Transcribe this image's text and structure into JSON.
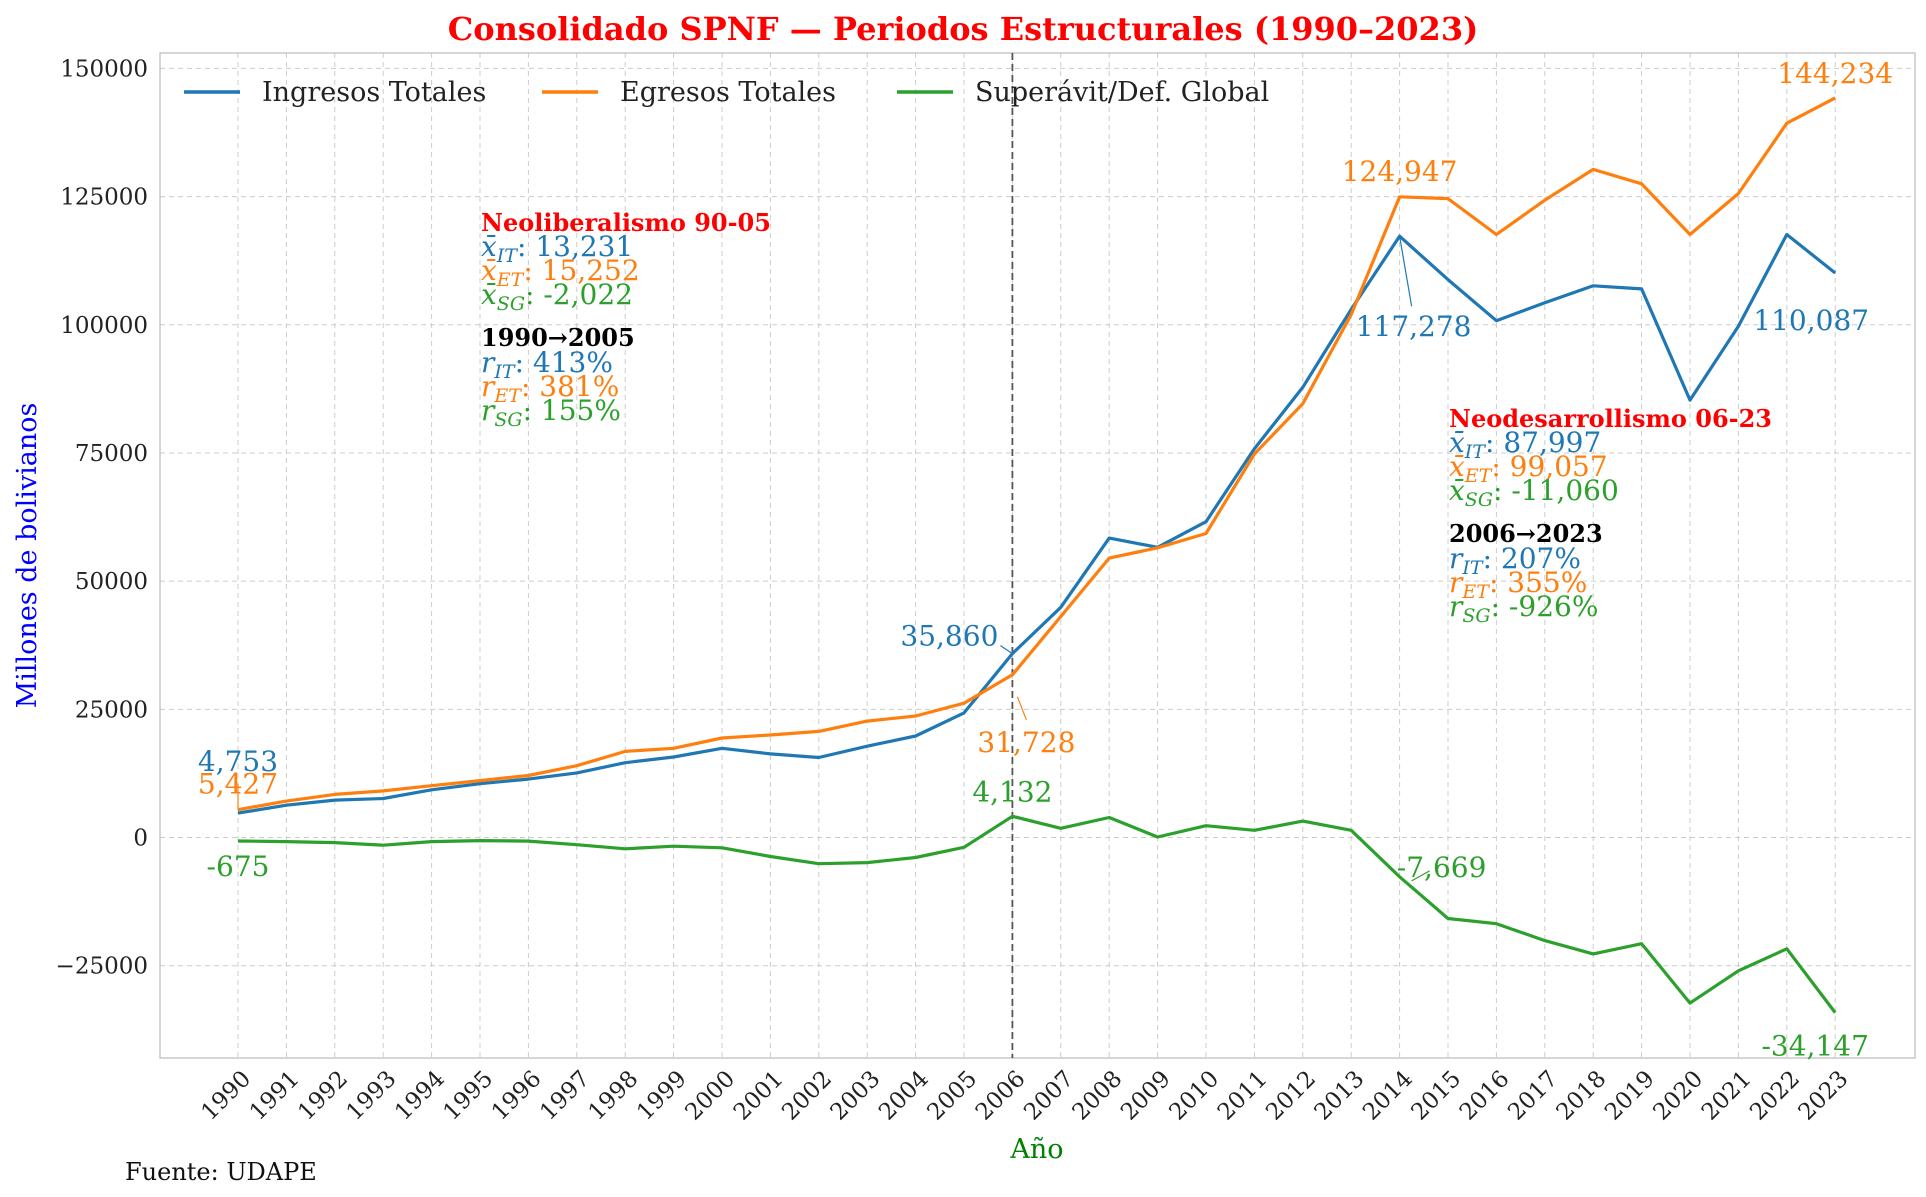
{
  "chart_data": {
    "type": "line",
    "title": "Consolidado SPNF — Periodos Estructurales (1990–2023)",
    "xlabel": "Año",
    "ylabel": "Millones de bolivianos",
    "source_note": "Fuente: UDAPE",
    "x": [
      1990,
      1991,
      1992,
      1993,
      1994,
      1995,
      1996,
      1997,
      1998,
      1999,
      2000,
      2001,
      2002,
      2003,
      2004,
      2005,
      2006,
      2007,
      2008,
      2009,
      2010,
      2011,
      2012,
      2013,
      2014,
      2015,
      2016,
      2017,
      2018,
      2019,
      2020,
      2021,
      2022,
      2023
    ],
    "ylim": [
      -43000,
      153000
    ],
    "yticks": [
      -25000,
      0,
      25000,
      50000,
      75000,
      100000,
      125000,
      150000
    ],
    "ytick_labels": [
      "−25000",
      "0",
      "25000",
      "50000",
      "75000",
      "100000",
      "125000",
      "150000"
    ],
    "grid": true,
    "legend_position": "top-left",
    "divider_year": 2006,
    "series": [
      {
        "name": "Ingresos Totales",
        "color": "#1f77b4",
        "values": [
          4753,
          6300,
          7300,
          7600,
          9300,
          10500,
          11400,
          12600,
          14600,
          15700,
          17400,
          16300,
          15600,
          17800,
          19800,
          24300,
          35860,
          44900,
          58400,
          56600,
          61600,
          75800,
          87800,
          103000,
          117278,
          108800,
          100800,
          104300,
          107600,
          107000,
          85300,
          99700,
          117600,
          110087
        ]
      },
      {
        "name": "Egresos Totales",
        "color": "#ff7f0e",
        "values": [
          5427,
          7100,
          8400,
          9100,
          10100,
          11100,
          12100,
          14000,
          16800,
          17400,
          19400,
          20000,
          20700,
          22700,
          23700,
          26200,
          31728,
          43100,
          54500,
          56500,
          59300,
          74800,
          84600,
          102000,
          124947,
          124600,
          117600,
          124300,
          130300,
          127500,
          117600,
          125600,
          139300,
          144234
        ]
      },
      {
        "name": "Superávit/Def. Global",
        "color": "#2ca02c",
        "values": [
          -675,
          -800,
          -1000,
          -1500,
          -800,
          -600,
          -700,
          -1400,
          -2200,
          -1700,
          -2000,
          -3700,
          -5100,
          -4900,
          -3900,
          -1900,
          4132,
          1800,
          3900,
          100,
          2300,
          1400,
          3200,
          1400,
          -7669,
          -15800,
          -16800,
          -20100,
          -22700,
          -20700,
          -32300,
          -26000,
          -21700,
          -34147
        ]
      }
    ],
    "annotations": [
      {
        "text": "5,427",
        "series": 1,
        "year": 1990,
        "color": "#ff7f0e"
      },
      {
        "text": "4,753",
        "series": 0,
        "year": 1990,
        "color": "#1f77b4"
      },
      {
        "text": "-675",
        "series": 2,
        "year": 1990,
        "color": "#2ca02c"
      },
      {
        "text": "35,860",
        "series": 0,
        "year": 2006,
        "color": "#1f77b4"
      },
      {
        "text": "31,728",
        "series": 1,
        "year": 2006,
        "color": "#ff7f0e"
      },
      {
        "text": "4,132",
        "series": 2,
        "year": 2006,
        "color": "#2ca02c"
      },
      {
        "text": "124,947",
        "series": 1,
        "year": 2014,
        "color": "#ff7f0e"
      },
      {
        "text": "117,278",
        "series": 0,
        "year": 2014,
        "color": "#1f77b4"
      },
      {
        "text": "-7,669",
        "series": 2,
        "year": 2014,
        "color": "#2ca02c"
      },
      {
        "text": "144,234",
        "series": 1,
        "year": 2023,
        "color": "#ff7f0e"
      },
      {
        "text": "110,087",
        "series": 0,
        "year": 2023,
        "color": "#1f77b4"
      },
      {
        "text": "-34,147",
        "series": 2,
        "year": 2023,
        "color": "#2ca02c"
      }
    ],
    "period_blocks": [
      {
        "title": "Neoliberalismo 90-05",
        "title_color": "#ff0000",
        "means": [
          {
            "sym": "x̄",
            "sub": "IT",
            "value": ": 13,231",
            "color": "#1f77b4"
          },
          {
            "sym": "x̄",
            "sub": "ET",
            "value": ": 15,252",
            "color": "#ff7f0e"
          },
          {
            "sym": "x̄",
            "sub": "SG",
            "value": ": -2,022",
            "color": "#2ca02c"
          }
        ],
        "growth_title": "1990→2005",
        "growth": [
          {
            "sym": "r",
            "sub": "IT",
            "value": ": 413%",
            "color": "#1f77b4"
          },
          {
            "sym": "r",
            "sub": "ET",
            "value": ": 381%",
            "color": "#ff7f0e"
          },
          {
            "sym": "r",
            "sub": "SG",
            "value": ": 155%",
            "color": "#2ca02c"
          }
        ]
      },
      {
        "title": "Neodesarrollismo 06-23",
        "title_color": "#ff0000",
        "means": [
          {
            "sym": "x̄",
            "sub": "IT",
            "value": ": 87,997",
            "color": "#1f77b4"
          },
          {
            "sym": "x̄",
            "sub": "ET",
            "value": ": 99,057",
            "color": "#ff7f0e"
          },
          {
            "sym": "x̄",
            "sub": "SG",
            "value": ": -11,060",
            "color": "#2ca02c"
          }
        ],
        "growth_title": "2006→2023",
        "growth": [
          {
            "sym": "r",
            "sub": "IT",
            "value": ": 207%",
            "color": "#1f77b4"
          },
          {
            "sym": "r",
            "sub": "ET",
            "value": ": 355%",
            "color": "#ff7f0e"
          },
          {
            "sym": "r",
            "sub": "SG",
            "value": ": -926%",
            "color": "#2ca02c"
          }
        ]
      }
    ],
    "colors": {
      "title": "#ff0000",
      "ylabel": "#0000ff",
      "xlabel": "#008000",
      "grid": "#cccccc",
      "axes": "#bbbbbb",
      "divider": "#555555"
    }
  }
}
